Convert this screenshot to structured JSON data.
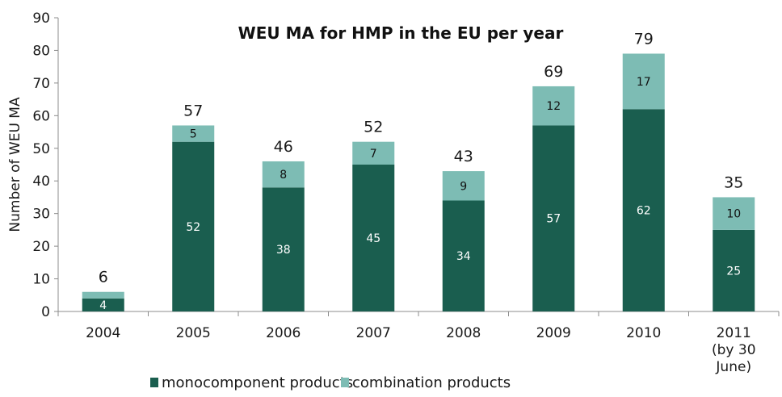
{
  "chart_data": {
    "type": "bar",
    "stacked": true,
    "title": "WEU MA for HMP in the EU per year",
    "xlabel": "",
    "ylabel": "Number of WEU MA",
    "ylim": [
      0,
      90
    ],
    "yticks": [
      0,
      10,
      20,
      30,
      40,
      50,
      60,
      70,
      80,
      90
    ],
    "grid": false,
    "legend_position": "bottom",
    "categories": [
      [
        "2004"
      ],
      [
        "2005"
      ],
      [
        "2006"
      ],
      [
        "2007"
      ],
      [
        "2008"
      ],
      [
        "2009"
      ],
      [
        "2010"
      ],
      [
        "2011",
        "(by 30",
        "June)"
      ]
    ],
    "series": [
      {
        "name": "monocomponent products",
        "color": "#1a5e4f",
        "label_color": "#ffffff",
        "values": [
          4,
          52,
          38,
          45,
          34,
          57,
          62,
          25
        ]
      },
      {
        "name": "combination products",
        "color": "#7dbcb4",
        "label_color": "#111111",
        "values": [
          2,
          5,
          8,
          7,
          9,
          12,
          17,
          10
        ]
      }
    ],
    "segment_labels": [
      [
        "4",
        "52",
        "38",
        "45",
        "34",
        "57",
        "62",
        "25"
      ],
      [
        "",
        "5",
        "8",
        "7",
        "9",
        "12",
        "17",
        "10"
      ]
    ],
    "totals": [
      "6",
      "57",
      "46",
      "52",
      "43",
      "69",
      "79",
      "35"
    ]
  }
}
